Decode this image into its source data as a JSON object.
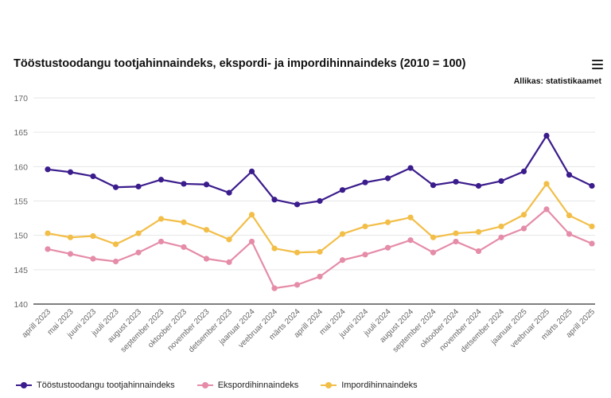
{
  "header": {
    "title": "Tööstustoodangu tootjahinnaindeks, ekspordi- ja impordihinnaindeks (2010 = 100)",
    "source": "Allikas: statistikaamet",
    "menu_icon": "hamburger-menu-icon"
  },
  "chart_data": {
    "type": "line",
    "title": "Tööstustoodangu tootjahinnaindeks, ekspordi- ja impordihinnaindeks (2010 = 100)",
    "xlabel": "",
    "ylabel": "",
    "ylim": [
      140,
      170
    ],
    "yticks": [
      140,
      145,
      150,
      155,
      160,
      165,
      170
    ],
    "grid": true,
    "legend_position": "bottom-left",
    "categories": [
      "aprill 2023",
      "mai 2023",
      "juuni 2023",
      "juuli 2023",
      "august 2023",
      "september 2023",
      "oktoober 2023",
      "november 2023",
      "detsember 2023",
      "jaanuar 2024",
      "veebruar 2024",
      "märts 2024",
      "aprill 2024",
      "mai 2024",
      "juuni 2024",
      "juuli 2024",
      "august 2024",
      "september 2024",
      "oktoober 2024",
      "november 2024",
      "detsember 2024",
      "jaanuar 2025",
      "veebruar 2025",
      "märts 2025",
      "aprill 2025"
    ],
    "series": [
      {
        "name": "Tööstustoodangu tootjahinnaindeks",
        "color": "#3b1c8c",
        "values": [
          159.6,
          159.2,
          158.6,
          157.0,
          157.1,
          158.1,
          157.5,
          157.4,
          156.2,
          159.3,
          155.2,
          154.5,
          155.0,
          156.6,
          157.7,
          158.3,
          159.8,
          157.3,
          157.8,
          157.2,
          157.9,
          159.3,
          164.5,
          158.8,
          157.2
        ]
      },
      {
        "name": "Ekspordihinnaindeks",
        "color": "#e58ca8",
        "values": [
          148.0,
          147.3,
          146.6,
          146.2,
          147.5,
          149.1,
          148.3,
          146.6,
          146.1,
          149.1,
          142.3,
          142.8,
          144.0,
          146.4,
          147.2,
          148.2,
          149.3,
          147.5,
          149.1,
          147.7,
          149.7,
          151.0,
          153.8,
          150.2,
          148.8
        ]
      },
      {
        "name": "Impordihinnaindeks",
        "color": "#f2be48",
        "values": [
          150.3,
          149.7,
          149.9,
          148.7,
          150.3,
          152.4,
          151.9,
          150.8,
          149.4,
          153.0,
          148.1,
          147.5,
          147.6,
          150.2,
          151.3,
          151.9,
          152.6,
          149.7,
          150.3,
          150.5,
          151.3,
          153.0,
          157.5,
          152.9,
          151.3
        ]
      }
    ]
  }
}
